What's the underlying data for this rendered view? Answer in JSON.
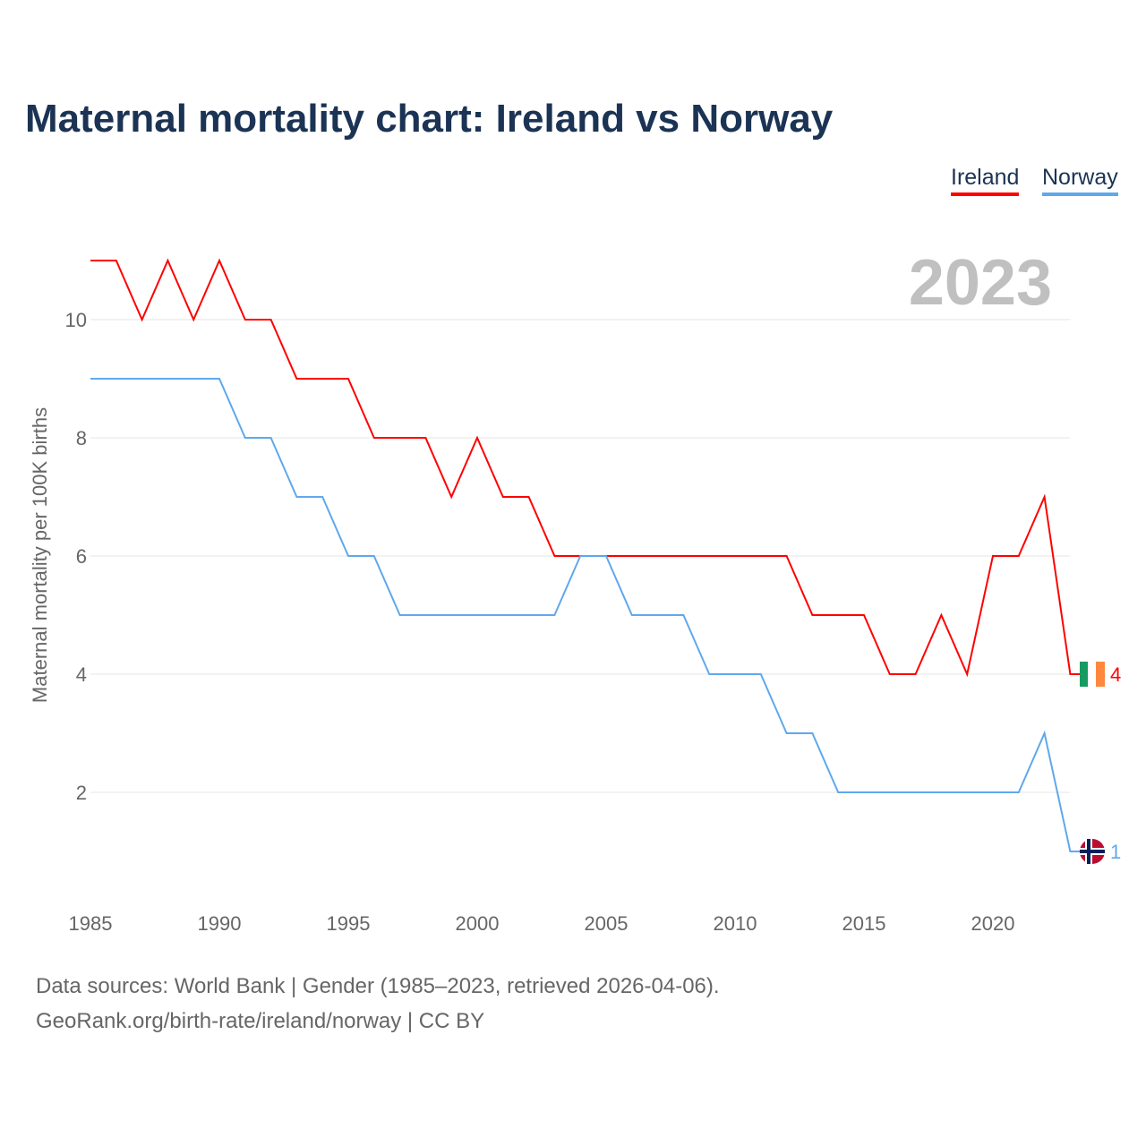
{
  "chart_data": {
    "type": "line",
    "title": "Maternal mortality chart: Ireland vs Norway",
    "ylabel": "Maternal mortality per 100K births",
    "xlabel": "",
    "year_label": "2023",
    "x": [
      1985,
      1986,
      1987,
      1988,
      1989,
      1990,
      1991,
      1992,
      1993,
      1994,
      1995,
      1996,
      1997,
      1998,
      1999,
      2000,
      2001,
      2002,
      2003,
      2004,
      2005,
      2006,
      2007,
      2008,
      2009,
      2010,
      2011,
      2012,
      2013,
      2014,
      2015,
      2016,
      2017,
      2018,
      2019,
      2020,
      2021,
      2022,
      2023
    ],
    "series": [
      {
        "name": "Ireland",
        "color": "#ff0000",
        "end_label": "4",
        "values": [
          11,
          11,
          10,
          11,
          10,
          11,
          10,
          10,
          9,
          9,
          9,
          8,
          8,
          8,
          7,
          8,
          7,
          7,
          6,
          6,
          6,
          6,
          6,
          6,
          6,
          6,
          6,
          6,
          5,
          5,
          5,
          4,
          4,
          5,
          4,
          6,
          6,
          7,
          4
        ]
      },
      {
        "name": "Norway",
        "color": "#5fa8ec",
        "end_label": "1",
        "values": [
          9,
          9,
          9,
          9,
          9,
          9,
          8,
          8,
          7,
          7,
          6,
          6,
          5,
          5,
          5,
          5,
          5,
          5,
          5,
          6,
          6,
          5,
          5,
          5,
          4,
          4,
          4,
          3,
          3,
          2,
          2,
          2,
          2,
          2,
          2,
          2,
          2,
          3,
          1
        ]
      }
    ],
    "xticks": [
      "1985",
      "1990",
      "1995",
      "2000",
      "2005",
      "2010",
      "2015",
      "2020"
    ],
    "yticks": [
      "2",
      "4",
      "6",
      "8",
      "10"
    ],
    "xlim": [
      1985,
      2023
    ],
    "ylim": [
      0,
      12
    ],
    "grid": true,
    "legend": "top-right"
  },
  "footer": {
    "line1": "Data sources: World Bank | Gender (1985–2023, retrieved 2026-04-06).",
    "line2": "GeoRank.org/birth-rate/ireland/norway | CC BY"
  }
}
